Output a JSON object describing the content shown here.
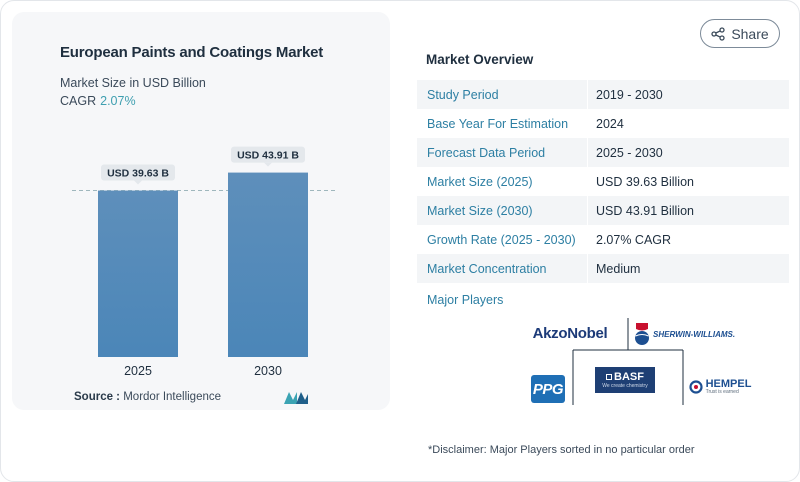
{
  "chart_data": {
    "type": "bar",
    "title": "European Paints and Coatings Market",
    "subtitle": "Market Size in USD Billion",
    "cagr_label": "CAGR",
    "cagr_value": "2.07%",
    "categories": [
      "2025",
      "2030"
    ],
    "values": [
      39.63,
      43.91
    ],
    "data_labels": [
      "USD 39.63 B",
      "USD 43.91 B"
    ],
    "colors": {
      "bar_start": "#5b87ad",
      "bar_end": "#4b88bb",
      "label_bg": "#e4e8ec",
      "reference_line": "#9fb7bd"
    }
  },
  "source": {
    "label": "Source :",
    "value": "Mordor Intelligence"
  },
  "share": {
    "label": "Share"
  },
  "market_overview": {
    "title": "Market Overview",
    "rows": [
      {
        "key": "Study Period",
        "value": "2019 - 2030"
      },
      {
        "key": "Base Year For Estimation",
        "value": "2024"
      },
      {
        "key": "Forecast Data Period",
        "value": "2025 - 2030"
      },
      {
        "key": "Market Size (2025)",
        "value": "USD 39.63 Billion"
      },
      {
        "key": "Market Size (2030)",
        "value": "USD 43.91 Billion"
      },
      {
        "key": "Growth Rate (2025 - 2030)",
        "value": "2.07% CAGR"
      },
      {
        "key": "Market Concentration",
        "value": "Medium"
      }
    ]
  },
  "major_players": {
    "title": "Major Players",
    "logos": [
      "AkzoNobel",
      "SHERWIN-WILLIAMS.",
      "PPG",
      "BASF",
      "HEMPEL"
    ],
    "basf_tagline": "We create chemistry",
    "hempel_tagline": "Trust is earned"
  },
  "disclaimer": "*Disclaimer: Major Players sorted in no particular order"
}
